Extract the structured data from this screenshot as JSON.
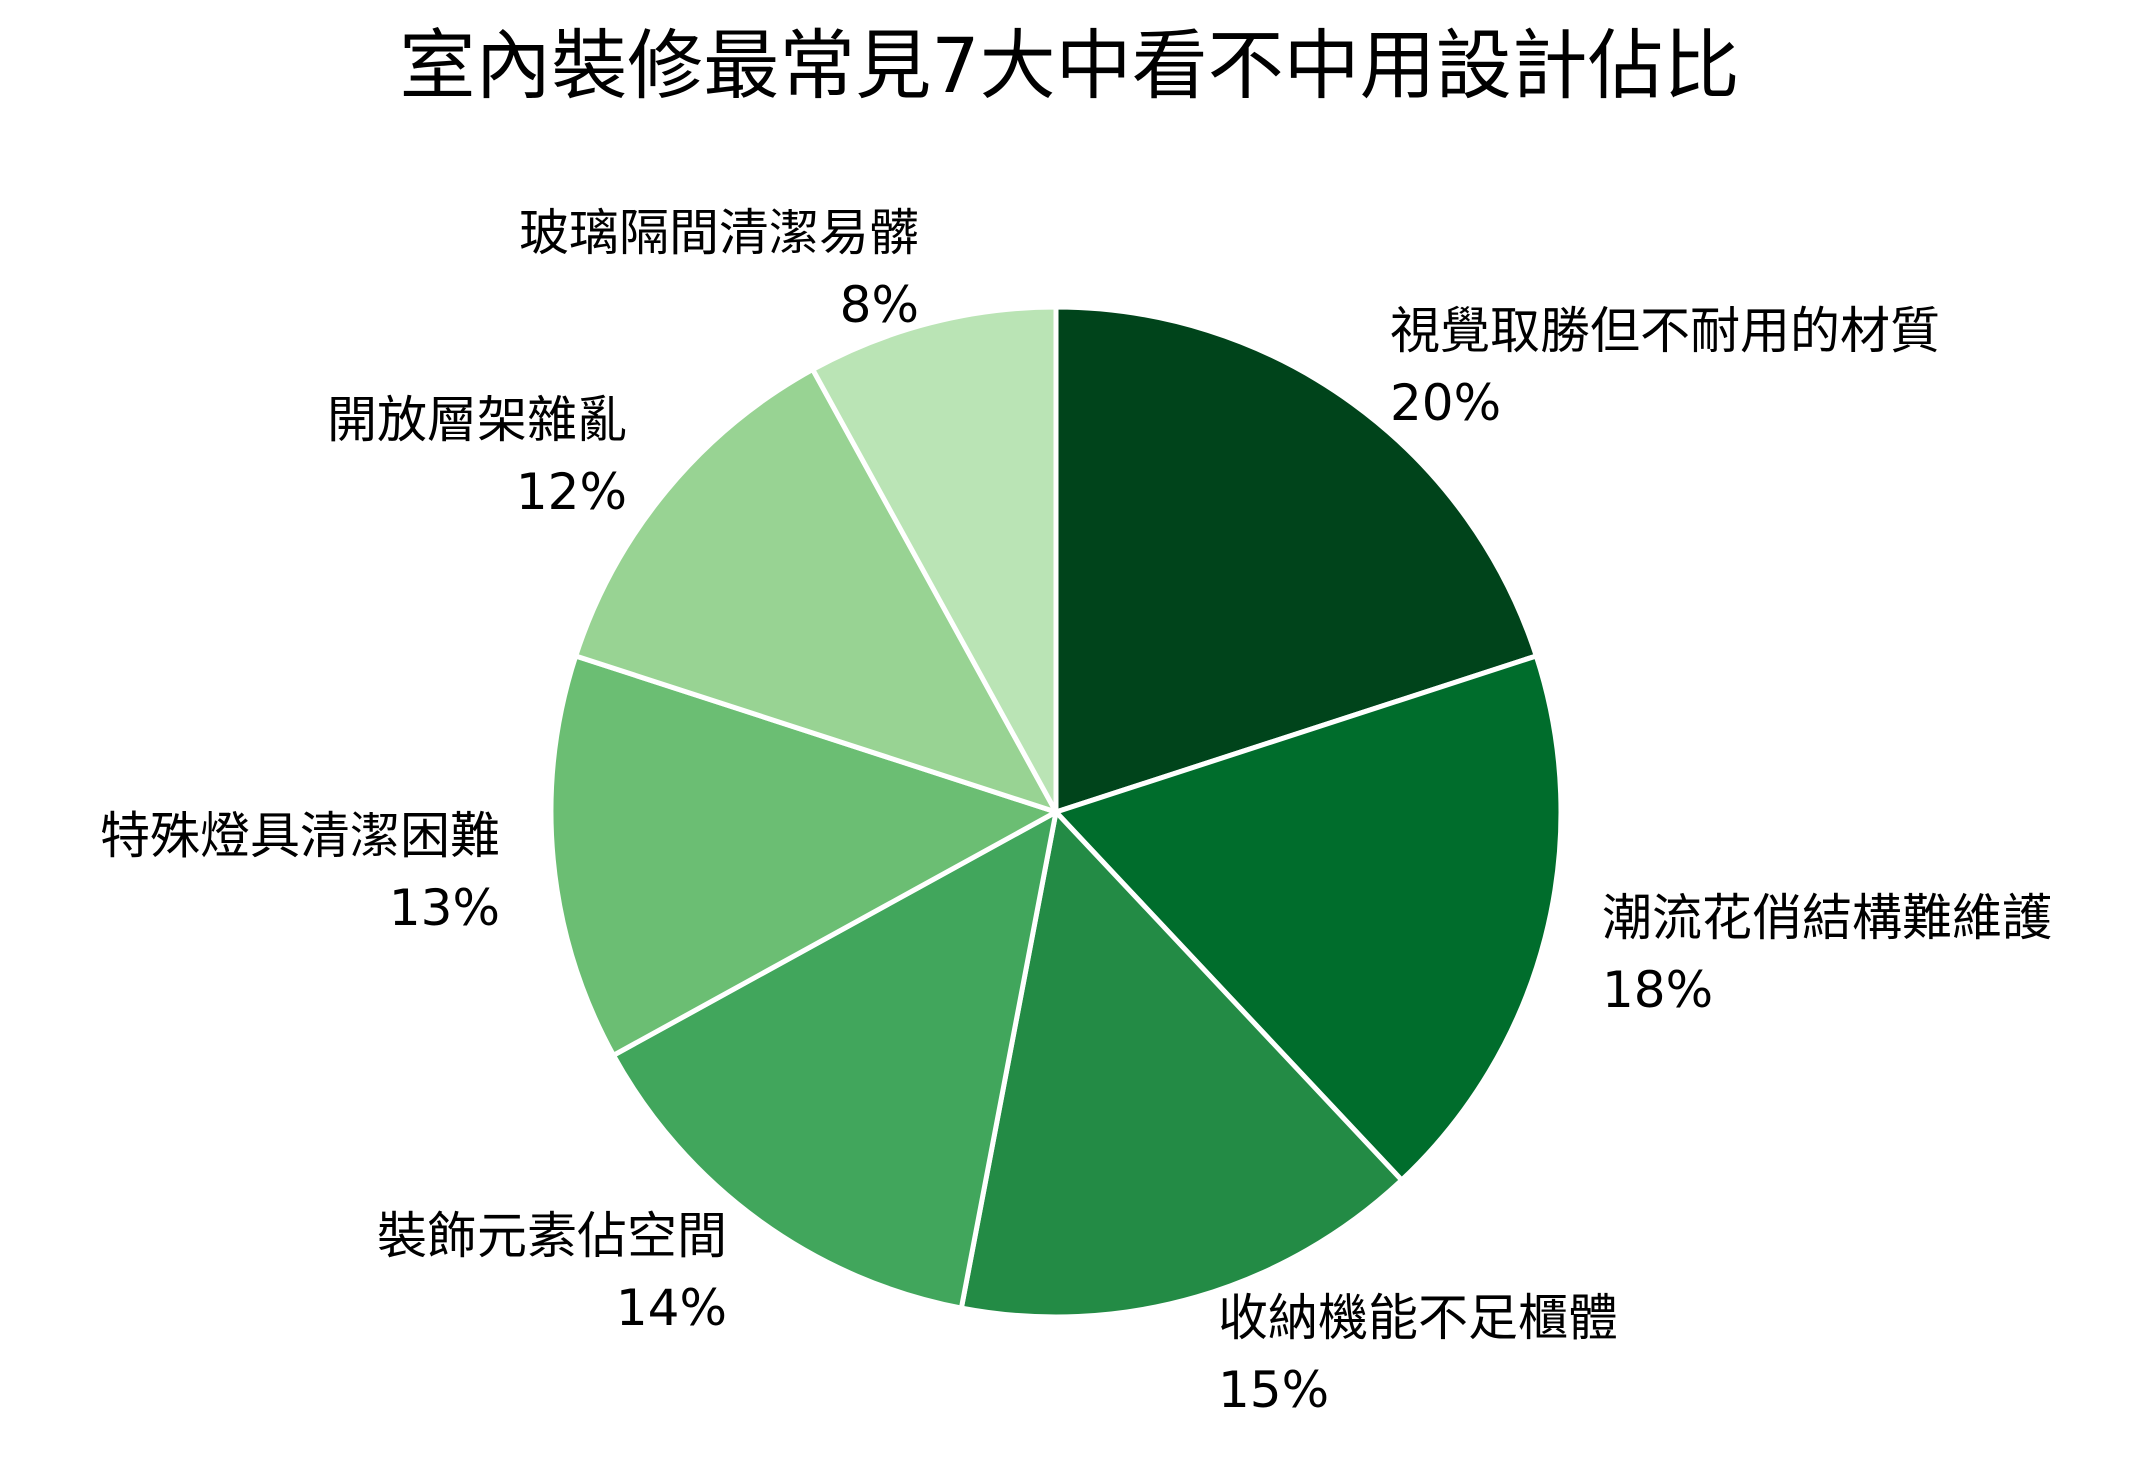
{
  "chart_data": {
    "type": "pie",
    "title": "室內裝修最常見7大中看不中用設計佔比",
    "start_angle_deg": 0,
    "direction": "clockwise",
    "categories": [
      "視覺取勝但不耐用的材質",
      "潮流花俏結構難維護",
      "收納機能不足櫃體",
      "裝飾元素佔空間",
      "特殊燈具清潔困難",
      "開放層架雜亂",
      "玻璃隔間清潔易髒"
    ],
    "values": [
      20,
      18,
      15,
      14,
      13,
      12,
      8
    ],
    "value_labels": [
      "20%",
      "18%",
      "15%",
      "14%",
      "13%",
      "12%",
      "8%"
    ],
    "colors": [
      "#00441b",
      "#006d2c",
      "#238b45",
      "#41a65c",
      "#6bbe73",
      "#98d393",
      "#bae4b5"
    ],
    "slice_border_color": "#ffffff",
    "legend": "none"
  }
}
